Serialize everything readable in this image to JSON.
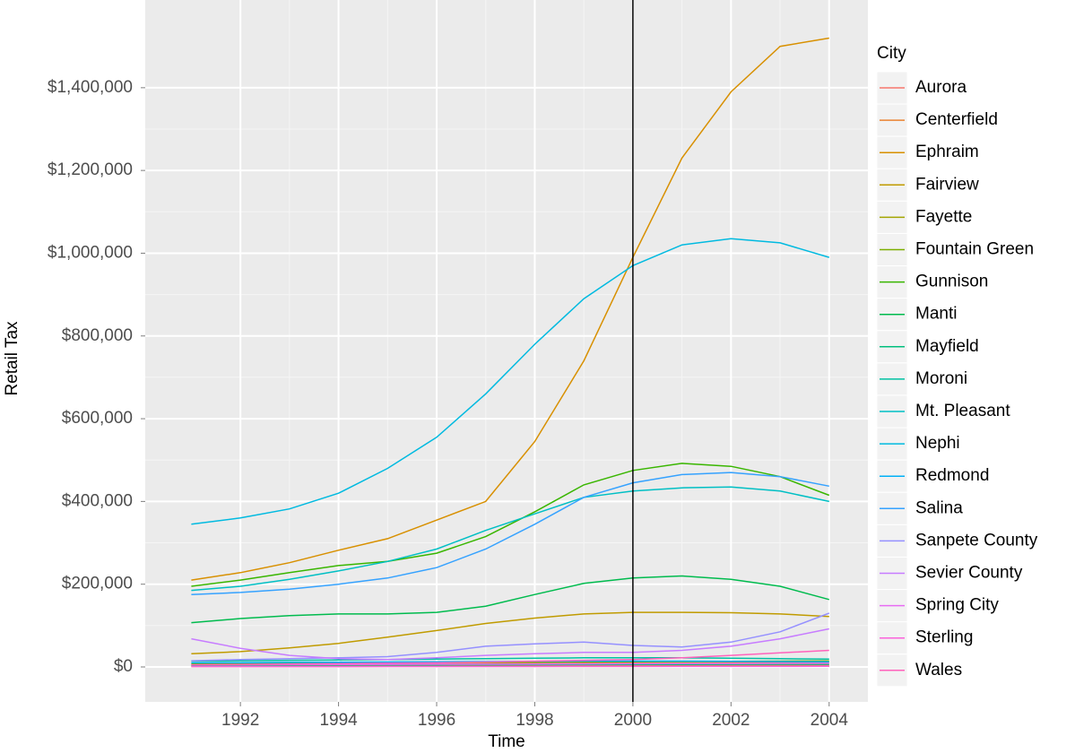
{
  "chart_data": {
    "type": "line",
    "x_label": "Time",
    "y_label": "Retail Tax",
    "legend_title": "City",
    "x": [
      1991,
      1992,
      1993,
      1994,
      1995,
      1996,
      1997,
      1998,
      1999,
      2000,
      2001,
      2002,
      2003,
      2004
    ],
    "xlim": [
      1990.06,
      2004.79
    ],
    "ylim": [
      -84500,
      1612000
    ],
    "xticks": [
      1992,
      1994,
      1996,
      1998,
      2000,
      2002,
      2004
    ],
    "yticks": [
      {
        "value": 0,
        "label": "$0"
      },
      {
        "value": 200000,
        "label": "$200,000"
      },
      {
        "value": 400000,
        "label": "$400,000"
      },
      {
        "value": 600000,
        "label": "$600,000"
      },
      {
        "value": 800000,
        "label": "$800,000"
      },
      {
        "value": 1000000,
        "label": "$1,000,000"
      },
      {
        "value": 1200000,
        "label": "$1,200,000"
      },
      {
        "value": 1400000,
        "label": "$1,400,000"
      }
    ],
    "vline": 2000,
    "grid": true,
    "series": [
      {
        "name": "Aurora",
        "color": "#F8766D",
        "values": [
          2000,
          2200,
          2400,
          2600,
          2800,
          3000,
          3200,
          3400,
          3600,
          3800,
          4000,
          4200,
          4400,
          4600
        ]
      },
      {
        "name": "Centerfield",
        "color": "#EA8331",
        "values": [
          6000,
          6300,
          6600,
          7000,
          7400,
          7800,
          8200,
          8600,
          9000,
          9400,
          9800,
          10200,
          10600,
          11000
        ]
      },
      {
        "name": "Ephraim",
        "color": "#D89000",
        "values": [
          210000,
          228000,
          252000,
          282000,
          310000,
          355000,
          400000,
          545000,
          740000,
          990000,
          1230000,
          1390000,
          1500000,
          1520000
        ]
      },
      {
        "name": "Fairview",
        "color": "#C09B00",
        "values": [
          32000,
          37000,
          46000,
          57000,
          72000,
          88000,
          105000,
          118000,
          128000,
          132000,
          132000,
          131000,
          128000,
          122000
        ]
      },
      {
        "name": "Fayette",
        "color": "#A3A500",
        "values": [
          1000,
          1000,
          1100,
          1100,
          1200,
          1200,
          1300,
          1300,
          1400,
          1400,
          1500,
          1500,
          1600,
          1600
        ]
      },
      {
        "name": "Fountain Green",
        "color": "#7CAE00",
        "values": [
          8000,
          8500,
          9000,
          9500,
          10000,
          10500,
          11000,
          11500,
          12000,
          12500,
          13000,
          13500,
          14000,
          14500
        ]
      },
      {
        "name": "Gunnison",
        "color": "#39B600",
        "values": [
          195000,
          210000,
          228000,
          245000,
          255000,
          275000,
          315000,
          375000,
          440000,
          475000,
          492000,
          485000,
          460000,
          415000
        ]
      },
      {
        "name": "Manti",
        "color": "#00BB4E",
        "values": [
          107000,
          117000,
          124000,
          128000,
          128000,
          132000,
          147000,
          175000,
          202000,
          215000,
          220000,
          212000,
          195000,
          163000
        ]
      },
      {
        "name": "Mayfield",
        "color": "#00BF7D",
        "values": [
          4000,
          4200,
          4400,
          4600,
          4800,
          5000,
          5200,
          5400,
          5600,
          5800,
          6000,
          6200,
          6400,
          6600
        ]
      },
      {
        "name": "Moroni",
        "color": "#00C1A3",
        "values": [
          14000,
          15000,
          16000,
          17000,
          18000,
          19000,
          20000,
          21000,
          22000,
          22000,
          22000,
          21000,
          20000,
          19000
        ]
      },
      {
        "name": "Mt. Pleasant",
        "color": "#00BFC4",
        "values": [
          185000,
          195000,
          212000,
          232000,
          255000,
          285000,
          330000,
          370000,
          410000,
          425000,
          433000,
          435000,
          425000,
          400000
        ]
      },
      {
        "name": "Nephi",
        "color": "#00BAE0",
        "values": [
          345000,
          360000,
          382000,
          420000,
          480000,
          555000,
          660000,
          780000,
          890000,
          970000,
          1020000,
          1035000,
          1025000,
          990000
        ]
      },
      {
        "name": "Redmond",
        "color": "#00B0F6",
        "values": [
          10000,
          10500,
          11000,
          11500,
          12000,
          12500,
          13000,
          13500,
          14000,
          14000,
          14000,
          13500,
          13000,
          12500
        ]
      },
      {
        "name": "Salina",
        "color": "#35A2FF",
        "values": [
          175000,
          180000,
          188000,
          200000,
          215000,
          240000,
          285000,
          345000,
          410000,
          445000,
          465000,
          470000,
          460000,
          437000
        ]
      },
      {
        "name": "Sanpete County",
        "color": "#9590FF",
        "values": [
          15000,
          18000,
          20000,
          22000,
          25000,
          35000,
          50000,
          56000,
          60000,
          52000,
          48000,
          60000,
          85000,
          130000
        ]
      },
      {
        "name": "Sevier County",
        "color": "#C77CFF",
        "values": [
          68000,
          45000,
          28000,
          20000,
          18000,
          22000,
          28000,
          32000,
          35000,
          35000,
          40000,
          50000,
          68000,
          92000
        ]
      },
      {
        "name": "Spring City",
        "color": "#E76BF3",
        "values": [
          5000,
          5300,
          5600,
          5900,
          6200,
          6500,
          6800,
          7100,
          7400,
          7700,
          8000,
          8300,
          8600,
          8900
        ]
      },
      {
        "name": "Sterling",
        "color": "#FA62DB",
        "values": [
          800,
          850,
          900,
          950,
          1000,
          1050,
          1100,
          1150,
          1200,
          1250,
          1300,
          1350,
          1400,
          1450
        ]
      },
      {
        "name": "Wales",
        "color": "#FF62BC",
        "values": [
          5000,
          6000,
          7000,
          8000,
          9000,
          10000,
          12000,
          14000,
          16000,
          18000,
          22000,
          28000,
          34000,
          40000
        ]
      }
    ]
  }
}
